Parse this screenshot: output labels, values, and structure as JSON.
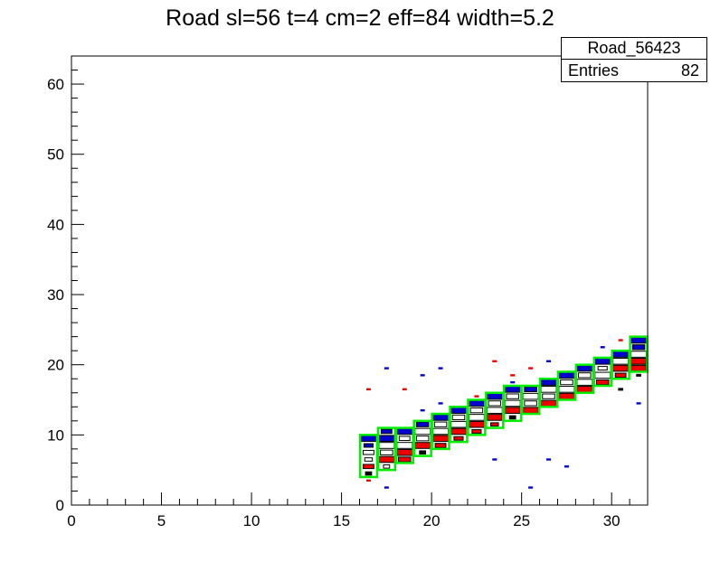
{
  "title": "Road sl=56 t=4 cm=2 eff=84 width=5.2",
  "stats": {
    "name": "Road_56423",
    "entries_label": "Entries",
    "entries_value": "82"
  },
  "chart_data": {
    "type": "heatmap",
    "title": "Road sl=56 t=4 cm=2 eff=84 width=5.2",
    "xlim": [
      0,
      32
    ],
    "ylim": [
      0,
      64
    ],
    "x_ticks": [
      0,
      5,
      10,
      15,
      20,
      25,
      30
    ],
    "y_ticks": [
      0,
      10,
      20,
      30,
      40,
      50,
      60
    ],
    "grid": false,
    "colors": {
      "road": "#00ee00",
      "blue": "#0000cc",
      "red": "#ee0000",
      "frame": "#000000"
    },
    "road": [
      {
        "x": 16,
        "ylo": 4,
        "yhi": 10
      },
      {
        "x": 17,
        "ylo": 5,
        "yhi": 11
      },
      {
        "x": 18,
        "ylo": 6,
        "yhi": 11
      },
      {
        "x": 19,
        "ylo": 7,
        "yhi": 12
      },
      {
        "x": 20,
        "ylo": 8,
        "yhi": 13
      },
      {
        "x": 21,
        "ylo": 9,
        "yhi": 14
      },
      {
        "x": 22,
        "ylo": 10,
        "yhi": 15
      },
      {
        "x": 23,
        "ylo": 11,
        "yhi": 16
      },
      {
        "x": 24,
        "ylo": 12,
        "yhi": 17
      },
      {
        "x": 25,
        "ylo": 13,
        "yhi": 17
      },
      {
        "x": 26,
        "ylo": 14,
        "yhi": 18
      },
      {
        "x": 27,
        "ylo": 15,
        "yhi": 19
      },
      {
        "x": 28,
        "ylo": 16,
        "yhi": 20
      },
      {
        "x": 29,
        "ylo": 17,
        "yhi": 21
      },
      {
        "x": 30,
        "ylo": 18,
        "yhi": 22
      },
      {
        "x": 31,
        "ylo": 19,
        "yhi": 24
      }
    ],
    "cells": [
      {
        "x": 16,
        "y": 9,
        "c": "blue",
        "w": 1.0
      },
      {
        "x": 16,
        "y": 8,
        "c": "blue",
        "w": 0.6
      },
      {
        "x": 16,
        "y": 7,
        "c": "white",
        "w": 0.7
      },
      {
        "x": 16,
        "y": 6,
        "c": "white",
        "w": 0.5
      },
      {
        "x": 16,
        "y": 5,
        "c": "red",
        "w": 0.7
      },
      {
        "x": 16,
        "y": 4,
        "c": "black",
        "w": 0.4
      },
      {
        "x": 17,
        "y": 10,
        "c": "blue",
        "w": 0.7
      },
      {
        "x": 17,
        "y": 9,
        "c": "blue",
        "w": 1.0
      },
      {
        "x": 17,
        "y": 8,
        "c": "white",
        "w": 1.0
      },
      {
        "x": 17,
        "y": 7,
        "c": "white",
        "w": 0.8
      },
      {
        "x": 17,
        "y": 6,
        "c": "red",
        "w": 1.0
      },
      {
        "x": 17,
        "y": 5,
        "c": "white",
        "w": 0.4
      },
      {
        "x": 18,
        "y": 10,
        "c": "blue",
        "w": 1.0
      },
      {
        "x": 18,
        "y": 9,
        "c": "white",
        "w": 0.7
      },
      {
        "x": 18,
        "y": 8,
        "c": "white",
        "w": 1.0
      },
      {
        "x": 18,
        "y": 7,
        "c": "red",
        "w": 1.0
      },
      {
        "x": 18,
        "y": 6,
        "c": "red",
        "w": 0.8
      },
      {
        "x": 19,
        "y": 11,
        "c": "blue",
        "w": 0.8
      },
      {
        "x": 19,
        "y": 10,
        "c": "white",
        "w": 1.0
      },
      {
        "x": 19,
        "y": 9,
        "c": "white",
        "w": 0.8
      },
      {
        "x": 19,
        "y": 8,
        "c": "red",
        "w": 1.0
      },
      {
        "x": 19,
        "y": 7,
        "c": "black",
        "w": 0.4
      },
      {
        "x": 20,
        "y": 12,
        "c": "blue",
        "w": 1.0
      },
      {
        "x": 20,
        "y": 11,
        "c": "white",
        "w": 0.8
      },
      {
        "x": 20,
        "y": 10,
        "c": "white",
        "w": 1.0
      },
      {
        "x": 20,
        "y": 9,
        "c": "red",
        "w": 1.0
      },
      {
        "x": 20,
        "y": 8,
        "c": "red",
        "w": 0.7
      },
      {
        "x": 21,
        "y": 13,
        "c": "blue",
        "w": 1.0
      },
      {
        "x": 21,
        "y": 12,
        "c": "white",
        "w": 0.8
      },
      {
        "x": 21,
        "y": 11,
        "c": "white",
        "w": 1.0
      },
      {
        "x": 21,
        "y": 10,
        "c": "red",
        "w": 1.0
      },
      {
        "x": 21,
        "y": 9,
        "c": "red",
        "w": 0.6
      },
      {
        "x": 22,
        "y": 14,
        "c": "blue",
        "w": 1.0
      },
      {
        "x": 22,
        "y": 13,
        "c": "white",
        "w": 0.8
      },
      {
        "x": 22,
        "y": 12,
        "c": "white",
        "w": 1.0
      },
      {
        "x": 22,
        "y": 11,
        "c": "red",
        "w": 1.0
      },
      {
        "x": 22,
        "y": 10,
        "c": "red",
        "w": 0.6
      },
      {
        "x": 23,
        "y": 15,
        "c": "blue",
        "w": 1.0
      },
      {
        "x": 23,
        "y": 14,
        "c": "white",
        "w": 0.8
      },
      {
        "x": 23,
        "y": 13,
        "c": "white",
        "w": 1.0
      },
      {
        "x": 23,
        "y": 12,
        "c": "red",
        "w": 1.0
      },
      {
        "x": 23,
        "y": 11,
        "c": "red",
        "w": 0.5
      },
      {
        "x": 24,
        "y": 16,
        "c": "blue",
        "w": 1.0
      },
      {
        "x": 24,
        "y": 15,
        "c": "white",
        "w": 0.8
      },
      {
        "x": 24,
        "y": 14,
        "c": "white",
        "w": 1.0
      },
      {
        "x": 24,
        "y": 13,
        "c": "red",
        "w": 1.0
      },
      {
        "x": 24,
        "y": 12,
        "c": "black",
        "w": 0.4
      },
      {
        "x": 25,
        "y": 16,
        "c": "blue",
        "w": 0.8
      },
      {
        "x": 25,
        "y": 15,
        "c": "white",
        "w": 1.0
      },
      {
        "x": 25,
        "y": 14,
        "c": "white",
        "w": 0.8
      },
      {
        "x": 25,
        "y": 13,
        "c": "red",
        "w": 1.0
      },
      {
        "x": 26,
        "y": 17,
        "c": "blue",
        "w": 1.0
      },
      {
        "x": 26,
        "y": 16,
        "c": "white",
        "w": 1.0
      },
      {
        "x": 26,
        "y": 15,
        "c": "white",
        "w": 0.8
      },
      {
        "x": 26,
        "y": 14,
        "c": "red",
        "w": 1.0
      },
      {
        "x": 27,
        "y": 18,
        "c": "blue",
        "w": 1.0
      },
      {
        "x": 27,
        "y": 17,
        "c": "white",
        "w": 0.8
      },
      {
        "x": 27,
        "y": 16,
        "c": "white",
        "w": 1.0
      },
      {
        "x": 27,
        "y": 15,
        "c": "red",
        "w": 1.0
      },
      {
        "x": 28,
        "y": 19,
        "c": "blue",
        "w": 1.0
      },
      {
        "x": 28,
        "y": 18,
        "c": "white",
        "w": 0.8
      },
      {
        "x": 28,
        "y": 17,
        "c": "white",
        "w": 1.0
      },
      {
        "x": 28,
        "y": 16,
        "c": "red",
        "w": 1.0
      },
      {
        "x": 29,
        "y": 20,
        "c": "blue",
        "w": 1.0
      },
      {
        "x": 29,
        "y": 19,
        "c": "white",
        "w": 0.6
      },
      {
        "x": 29,
        "y": 18,
        "c": "white",
        "w": 1.0
      },
      {
        "x": 29,
        "y": 17,
        "c": "red",
        "w": 0.8
      },
      {
        "x": 30,
        "y": 21,
        "c": "blue",
        "w": 1.0
      },
      {
        "x": 30,
        "y": 20,
        "c": "white",
        "w": 1.0
      },
      {
        "x": 30,
        "y": 19,
        "c": "red",
        "w": 1.0
      },
      {
        "x": 30,
        "y": 18,
        "c": "red",
        "w": 0.7
      },
      {
        "x": 31,
        "y": 23,
        "c": "blue",
        "w": 1.0
      },
      {
        "x": 31,
        "y": 22,
        "c": "blue",
        "w": 0.8
      },
      {
        "x": 31,
        "y": 21,
        "c": "white",
        "w": 1.0
      },
      {
        "x": 31,
        "y": 20,
        "c": "red",
        "w": 1.0
      },
      {
        "x": 31,
        "y": 19,
        "c": "red",
        "w": 1.0
      }
    ],
    "outliers": [
      {
        "x": 16,
        "y": 16,
        "c": "red"
      },
      {
        "x": 16,
        "y": 3,
        "c": "red"
      },
      {
        "x": 17,
        "y": 19,
        "c": "blue"
      },
      {
        "x": 17,
        "y": 2,
        "c": "blue"
      },
      {
        "x": 18,
        "y": 16,
        "c": "red"
      },
      {
        "x": 19,
        "y": 18,
        "c": "blue"
      },
      {
        "x": 19,
        "y": 13,
        "c": "blue"
      },
      {
        "x": 20,
        "y": 19,
        "c": "blue"
      },
      {
        "x": 20,
        "y": 14,
        "c": "blue"
      },
      {
        "x": 22,
        "y": 15,
        "c": "red"
      },
      {
        "x": 23,
        "y": 20,
        "c": "red"
      },
      {
        "x": 23,
        "y": 6,
        "c": "blue"
      },
      {
        "x": 24,
        "y": 18,
        "c": "red"
      },
      {
        "x": 24,
        "y": 17,
        "c": "blue"
      },
      {
        "x": 25,
        "y": 19,
        "c": "red"
      },
      {
        "x": 25,
        "y": 2,
        "c": "blue"
      },
      {
        "x": 26,
        "y": 20,
        "c": "blue"
      },
      {
        "x": 26,
        "y": 6,
        "c": "blue"
      },
      {
        "x": 27,
        "y": 5,
        "c": "blue"
      },
      {
        "x": 29,
        "y": 22,
        "c": "blue"
      },
      {
        "x": 30,
        "y": 23,
        "c": "red"
      },
      {
        "x": 30,
        "y": 16,
        "c": "black"
      },
      {
        "x": 31,
        "y": 14,
        "c": "blue"
      },
      {
        "x": 31,
        "y": 18,
        "c": "black"
      }
    ]
  }
}
